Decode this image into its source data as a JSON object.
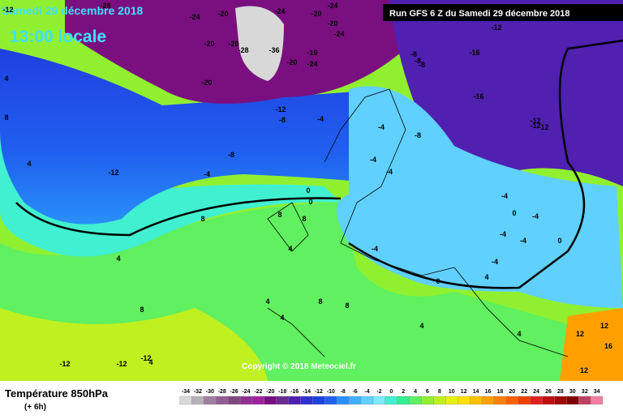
{
  "header": {
    "date": "Samedi 29 décembre 2018",
    "time": "13:00 locale",
    "run": "Run GFS 6 Z du Samedi 29 décembre 2018"
  },
  "copyright": "Copyright © 2018 Meteociel.fr",
  "legend": {
    "title": "Température 850hPa",
    "subtitle": "(+ 6h)",
    "values": [
      -34,
      -32,
      -30,
      -28,
      -26,
      -24,
      -22,
      -20,
      -18,
      -16,
      -14,
      -12,
      -10,
      -8,
      -6,
      -4,
      -2,
      0,
      2,
      4,
      6,
      8,
      10,
      12,
      14,
      16,
      18,
      20,
      22,
      24,
      26,
      28,
      30,
      32,
      34
    ],
    "colors": [
      "#d8d8d8",
      "#b8b0b8",
      "#a080a0",
      "#906090",
      "#804880",
      "#903090",
      "#a020a0",
      "#7a1080",
      "#6a2a90",
      "#5020b0",
      "#3030d0",
      "#2040e0",
      "#2060f0",
      "#2890f8",
      "#40b0ff",
      "#60d0ff",
      "#80e8ff",
      "#40f0d0",
      "#30f090",
      "#60f060",
      "#90f030",
      "#c0f020",
      "#e8f010",
      "#ffe000",
      "#ffc000",
      "#ffa000",
      "#ff8000",
      "#ff6000",
      "#f04000",
      "#e02020",
      "#c01010",
      "#a00808",
      "#800000",
      "#c04060",
      "#f080a0"
    ]
  },
  "map_labels": [
    "-28",
    "-24",
    "-20",
    "-24",
    "-20",
    "-24",
    "-20",
    "-24",
    "-20",
    "-20",
    "-28",
    "-36",
    "-16",
    "-20",
    "-24",
    "-20",
    "-8",
    "-16",
    "-12",
    "-8",
    "-16",
    "-8",
    "-8",
    "-12",
    "-12",
    "-4",
    "-4",
    "-4",
    "-12",
    "-4",
    "-4",
    "0",
    "0",
    "-4",
    "-4",
    "-4",
    "-4",
    "-4",
    "0",
    "0",
    "8",
    "8",
    "8",
    "4",
    "4",
    "8",
    "8",
    "4",
    "4",
    "8",
    "4",
    "4",
    "-12",
    "-12",
    "-12",
    "-12",
    "12",
    "12",
    "16",
    "12",
    "4",
    "4",
    "-8",
    "-8",
    "-12",
    "-12",
    "8",
    "4",
    "4",
    "-4",
    "0"
  ]
}
